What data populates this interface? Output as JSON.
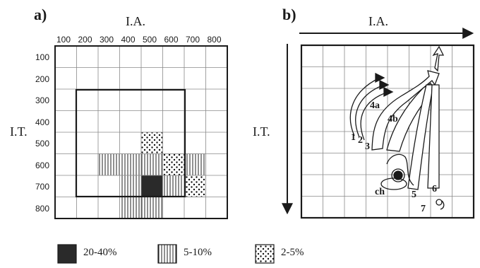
{
  "panel_a": {
    "label": "a)",
    "x_title": "I.A.",
    "y_title": "I.T.",
    "x_ticks": [
      "100",
      "200",
      "300",
      "400",
      "500",
      "600",
      "700",
      "800"
    ],
    "y_ticks": [
      "100",
      "200",
      "300",
      "400",
      "500",
      "600",
      "700",
      "800"
    ],
    "shaded_cells": [
      {
        "col": 5,
        "row": 5,
        "pattern": "dots"
      },
      {
        "col": 3,
        "row": 6,
        "pattern": "stripes"
      },
      {
        "col": 4,
        "row": 6,
        "pattern": "stripes"
      },
      {
        "col": 5,
        "row": 6,
        "pattern": "stripes"
      },
      {
        "col": 6,
        "row": 6,
        "pattern": "dots"
      },
      {
        "col": 7,
        "row": 6,
        "pattern": "stripes"
      },
      {
        "col": 4,
        "row": 7,
        "pattern": "stripes"
      },
      {
        "col": 5,
        "row": 7,
        "pattern": "solid"
      },
      {
        "col": 6,
        "row": 7,
        "pattern": "stripes"
      },
      {
        "col": 7,
        "row": 7,
        "pattern": "dots"
      },
      {
        "col": 4,
        "row": 8,
        "pattern": "stripes"
      },
      {
        "col": 5,
        "row": 8,
        "pattern": "stripes"
      }
    ]
  },
  "panel_b": {
    "label": "b)",
    "x_title": "I.A.",
    "y_title": "I.T.",
    "path_labels": [
      "1",
      "2",
      "3",
      "4a",
      "4b",
      "5",
      "6",
      "7",
      "ch"
    ]
  },
  "legend": [
    {
      "pattern": "solid",
      "label": "20-40%"
    },
    {
      "pattern": "stripes",
      "label": "5-10%"
    },
    {
      "pattern": "dots",
      "label": "2-5%"
    }
  ],
  "colors": {
    "ink": "#1a1a1a",
    "solid_fill": "#2a2a2a",
    "grid": "#8a8a8a"
  }
}
